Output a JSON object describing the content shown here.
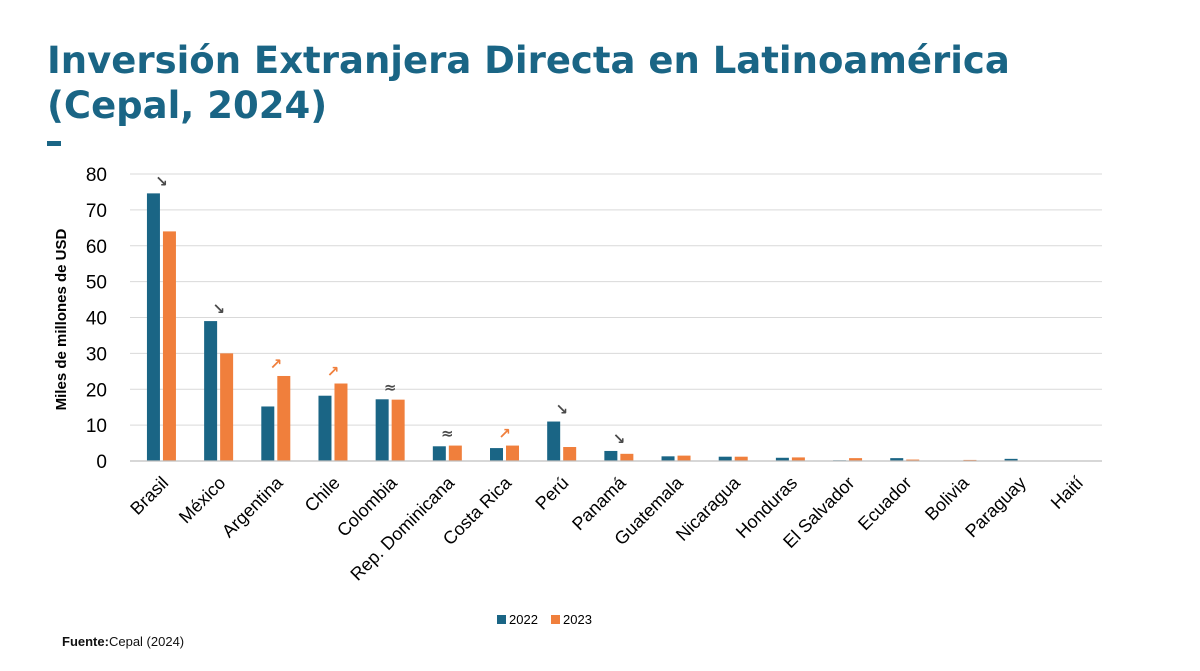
{
  "title_line1": "Inversión Extranjera Directa en Latinoamérica",
  "title_line2": "(Cepal, 2024)",
  "title_dash": "-",
  "source": {
    "label": "Fuente",
    "text": "Cepal (2024)"
  },
  "colors": {
    "title": "#1a6585",
    "series_2022": "#1a6585",
    "series_2023": "#f07f3c",
    "arrow_down": "#4a4a4a",
    "arrow_up": "#f07f3c",
    "grid": "#d9d9d9"
  },
  "chart_data": {
    "type": "bar",
    "title": "",
    "xlabel": "",
    "ylabel": "Miles de  millones de USD",
    "ylim": [
      0,
      80
    ],
    "yticks": [
      0,
      10,
      20,
      30,
      40,
      50,
      60,
      70,
      80
    ],
    "grid": true,
    "legend_position": "bottom",
    "categories": [
      "Brasil",
      "México",
      "Argentina",
      "Chile",
      "Colombia",
      "Rep. Dominicana",
      "Costa Rica",
      "Perú",
      "Panamá",
      "Guatemala",
      "Nicaragua",
      "Honduras",
      "El Salvador",
      "Ecuador",
      "Bolivia",
      "Paraguay",
      "Haití"
    ],
    "series": [
      {
        "name": "2022",
        "values": [
          74.6,
          39.0,
          15.2,
          18.2,
          17.2,
          4.1,
          3.6,
          11.0,
          2.8,
          1.3,
          1.2,
          0.9,
          0.2,
          0.8,
          0.1,
          0.6,
          0.05
        ]
      },
      {
        "name": "2023",
        "values": [
          64.0,
          30.0,
          23.7,
          21.6,
          17.1,
          4.3,
          4.3,
          3.9,
          2.0,
          1.5,
          1.2,
          1.0,
          0.8,
          0.4,
          0.3,
          0.1,
          0.05
        ]
      }
    ],
    "trend_markers": [
      {
        "category": "Brasil",
        "symbol": "↘",
        "kind": "down"
      },
      {
        "category": "México",
        "symbol": "↘",
        "kind": "down"
      },
      {
        "category": "Argentina",
        "symbol": "↗",
        "kind": "up"
      },
      {
        "category": "Chile",
        "symbol": "↗",
        "kind": "up"
      },
      {
        "category": "Colombia",
        "symbol": "≈",
        "kind": "flat"
      },
      {
        "category": "Rep. Dominicana",
        "symbol": "≈",
        "kind": "flat"
      },
      {
        "category": "Costa Rica",
        "symbol": "↗",
        "kind": "up"
      },
      {
        "category": "Perú",
        "symbol": "↘",
        "kind": "down"
      },
      {
        "category": "Panamá",
        "symbol": "↘",
        "kind": "down"
      }
    ]
  }
}
